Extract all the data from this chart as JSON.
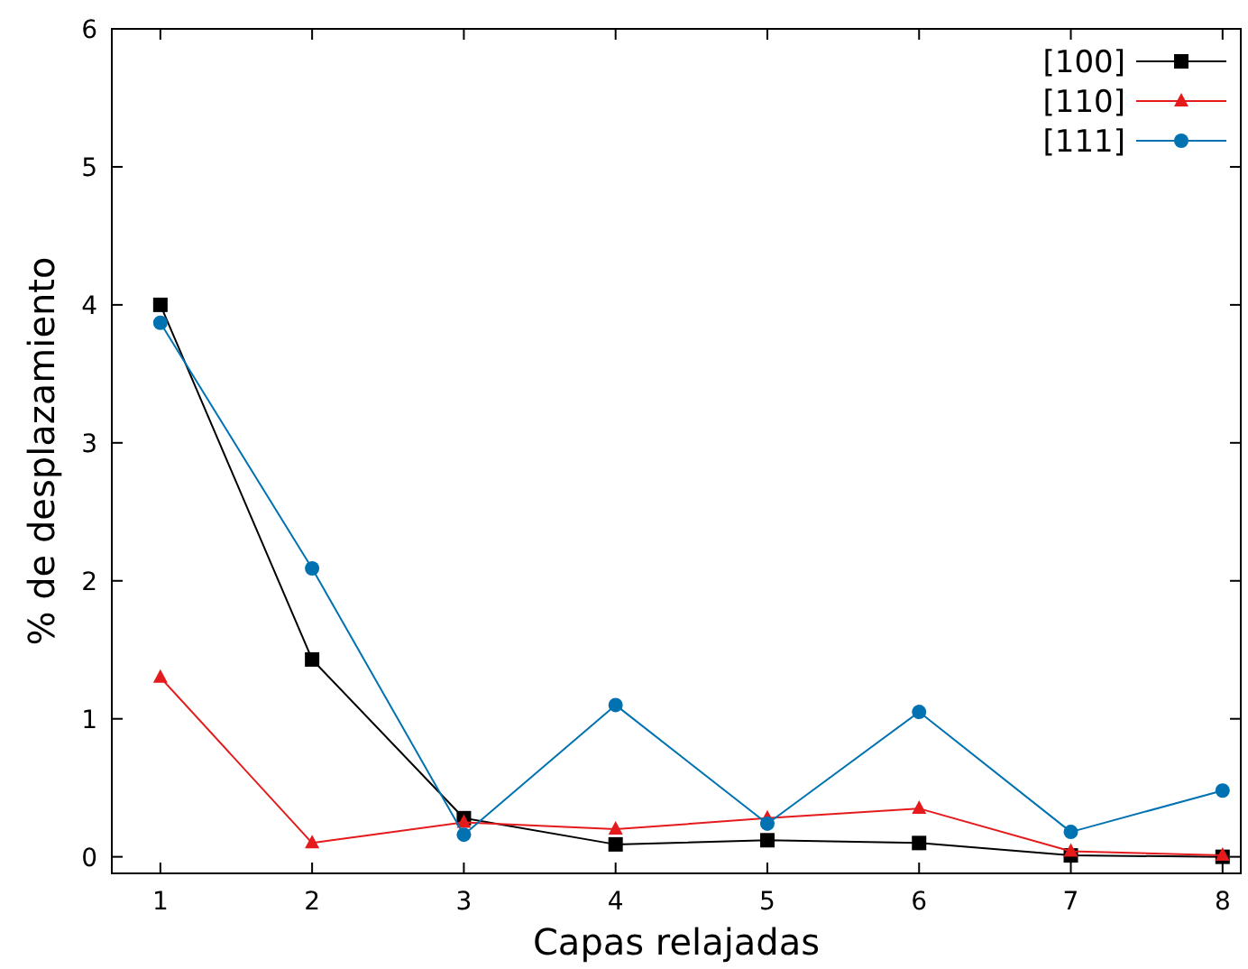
{
  "chart_data": {
    "type": "line",
    "xlabel": "Capas relajadas",
    "ylabel": "% de desplazamiento",
    "x": [
      1,
      2,
      3,
      4,
      5,
      6,
      7,
      8
    ],
    "series": [
      {
        "name": "[100]",
        "color": "#000000",
        "marker": "square",
        "values": [
          4.0,
          1.43,
          0.28,
          0.09,
          0.12,
          0.1,
          0.01,
          0.0
        ]
      },
      {
        "name": "[110]",
        "color": "#e41a1c",
        "marker": "triangle",
        "values": [
          1.3,
          0.1,
          0.25,
          0.2,
          0.28,
          0.35,
          0.04,
          0.01
        ]
      },
      {
        "name": "[111]",
        "color": "#0072b2",
        "marker": "circle",
        "values": [
          3.87,
          2.09,
          0.16,
          1.1,
          0.24,
          1.05,
          0.18,
          0.48
        ]
      }
    ],
    "xlim": [
      0.68,
      8.12
    ],
    "ylim": [
      -0.12,
      6
    ],
    "xticks": [
      1,
      2,
      3,
      4,
      5,
      6,
      7,
      8
    ],
    "yticks": [
      0,
      1,
      2,
      3,
      4,
      5,
      6
    ],
    "grid": false,
    "legend": "top right",
    "line_style": "solid"
  }
}
